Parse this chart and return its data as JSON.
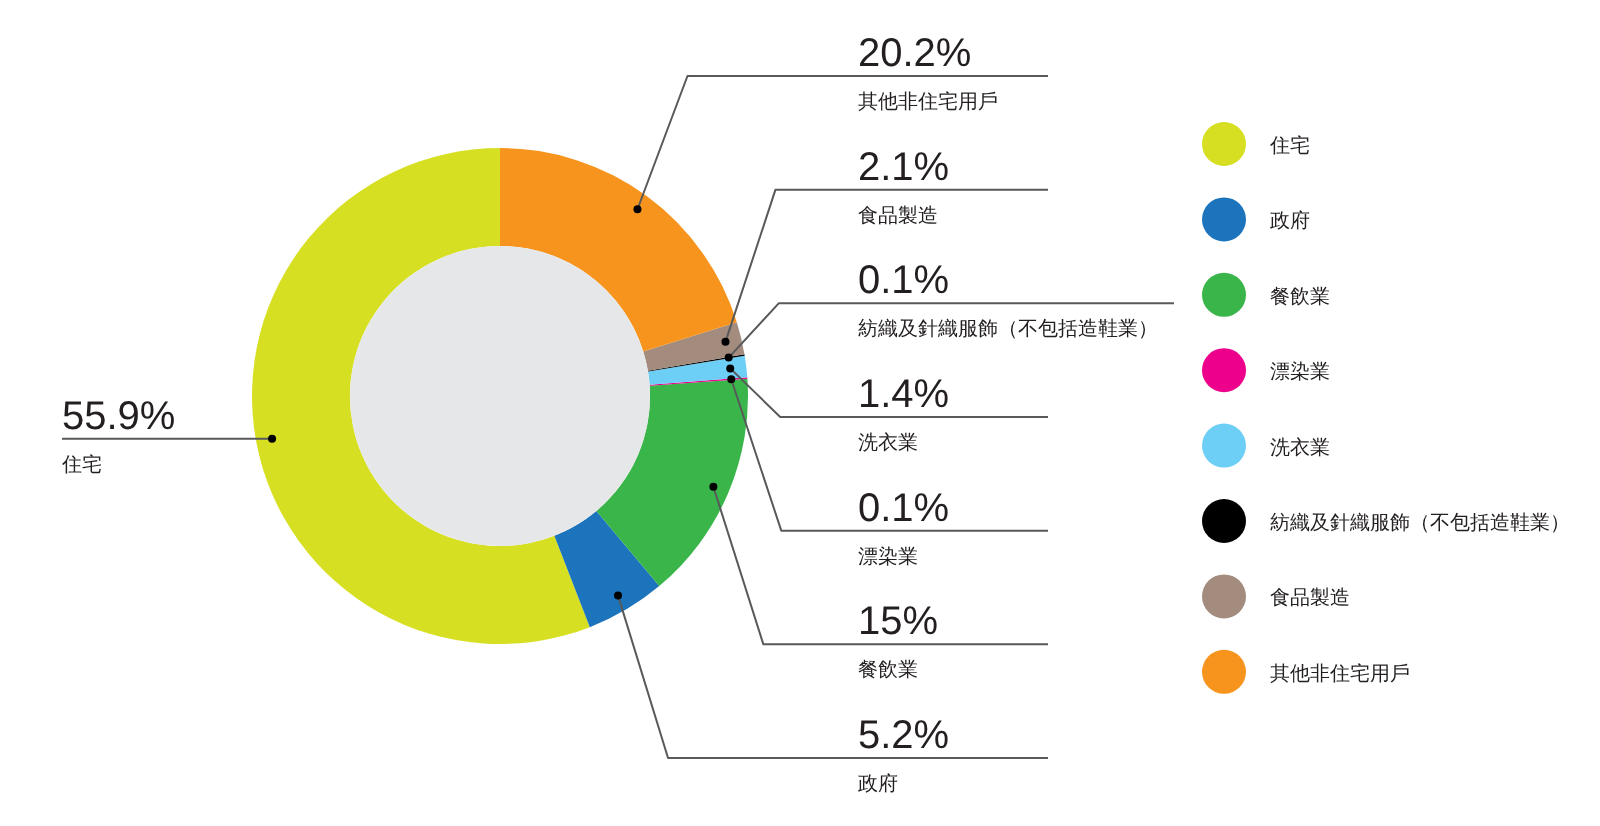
{
  "chart_data": {
    "type": "donut",
    "categories": [
      "住宅",
      "政府",
      "餐飲業",
      "漂染業",
      "洗衣業",
      "紡織及針織服飾（不包括造鞋業）",
      "食品製造",
      "其他非住宅用戶"
    ],
    "values": [
      55.9,
      5.2,
      15,
      0.1,
      1.4,
      0.1,
      2.1,
      20.2
    ],
    "colors": [
      "#d7df23",
      "#1c75bc",
      "#39b54a",
      "#ec008c",
      "#6dcff6",
      "#000000",
      "#a38b7e",
      "#f7941d"
    ],
    "value_labels": [
      "55.9%",
      "5.2%",
      "15%",
      "0.1%",
      "1.4%",
      "0.1%",
      "2.1%",
      "20.2%"
    ],
    "legend": "right"
  }
}
